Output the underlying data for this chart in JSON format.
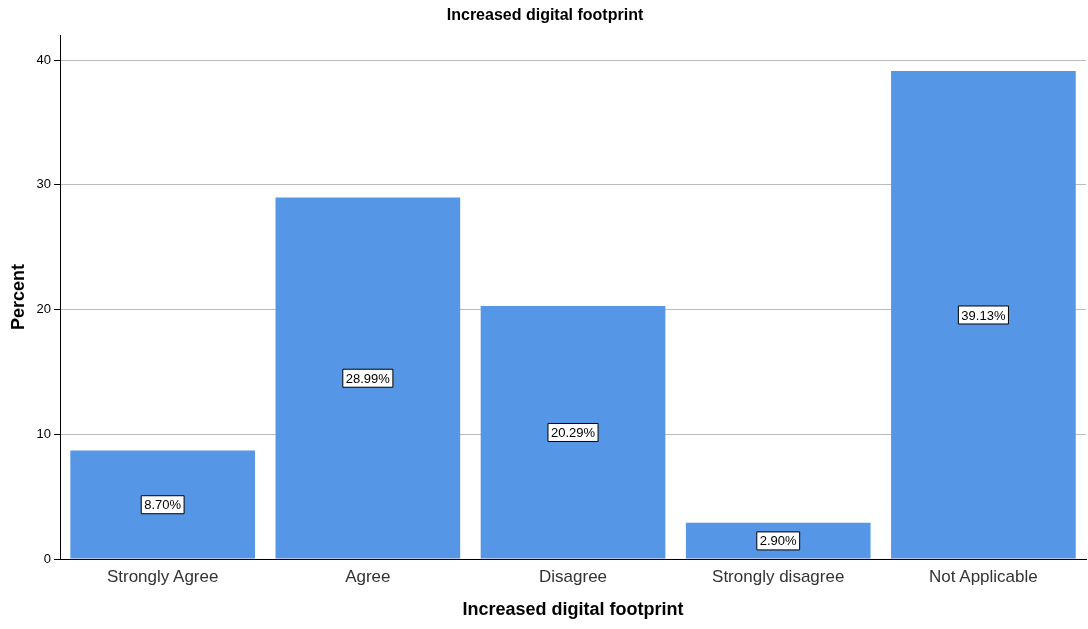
{
  "chart_data": {
    "type": "bar",
    "title": "Increased digital footprint",
    "xlabel": "Increased digital footprint",
    "ylabel": "Percent",
    "categories": [
      "Strongly Agree",
      "Agree",
      "Disagree",
      "Strongly disagree",
      "Not Applicable"
    ],
    "values": [
      8.7,
      28.99,
      20.29,
      2.9,
      39.13
    ],
    "value_labels": [
      "8.70%",
      "28.99%",
      "20.29%",
      "2.90%",
      "39.13%"
    ],
    "color": "#5596e6",
    "ylim": [
      0,
      42
    ],
    "yticks": [
      0,
      10,
      20,
      30,
      40
    ],
    "grid": "y",
    "legend": false
  }
}
